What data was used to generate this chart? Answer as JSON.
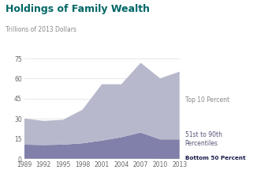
{
  "title": "Holdings of Family Wealth",
  "subtitle": "Trillions of 2013 Dollars",
  "years": [
    1989,
    1992,
    1995,
    1998,
    2001,
    2004,
    2007,
    2010,
    2013
  ],
  "bottom_50": [
    0.3,
    0.3,
    0.3,
    0.3,
    0.3,
    0.3,
    0.3,
    0.2,
    0.2
  ],
  "pct_51_90": [
    10.5,
    10.2,
    10.5,
    11.5,
    13.5,
    16.0,
    19.5,
    14.5,
    14.5
  ],
  "top_10": [
    19.5,
    18.0,
    18.5,
    25.0,
    42.0,
    39.5,
    52.0,
    45.5,
    50.5
  ],
  "color_bottom": "#3d3d6b",
  "color_mid": "#8080aa",
  "color_top": "#b8b8cc",
  "color_title": "#006666",
  "color_subtitle": "#888888",
  "color_annotation_top": "#888888",
  "color_annotation_mid": "#555577",
  "color_annotation_bottom": "#1a1a4a",
  "bg_color": "#ffffff",
  "ylim": [
    0,
    80
  ],
  "yticks": [
    0,
    15,
    30,
    45,
    60,
    75
  ],
  "annotation_top": "Top 10 Percent",
  "annotation_mid": "51st to 90th\nPercentiles",
  "annotation_bottom": "Bottom 50 Percent"
}
